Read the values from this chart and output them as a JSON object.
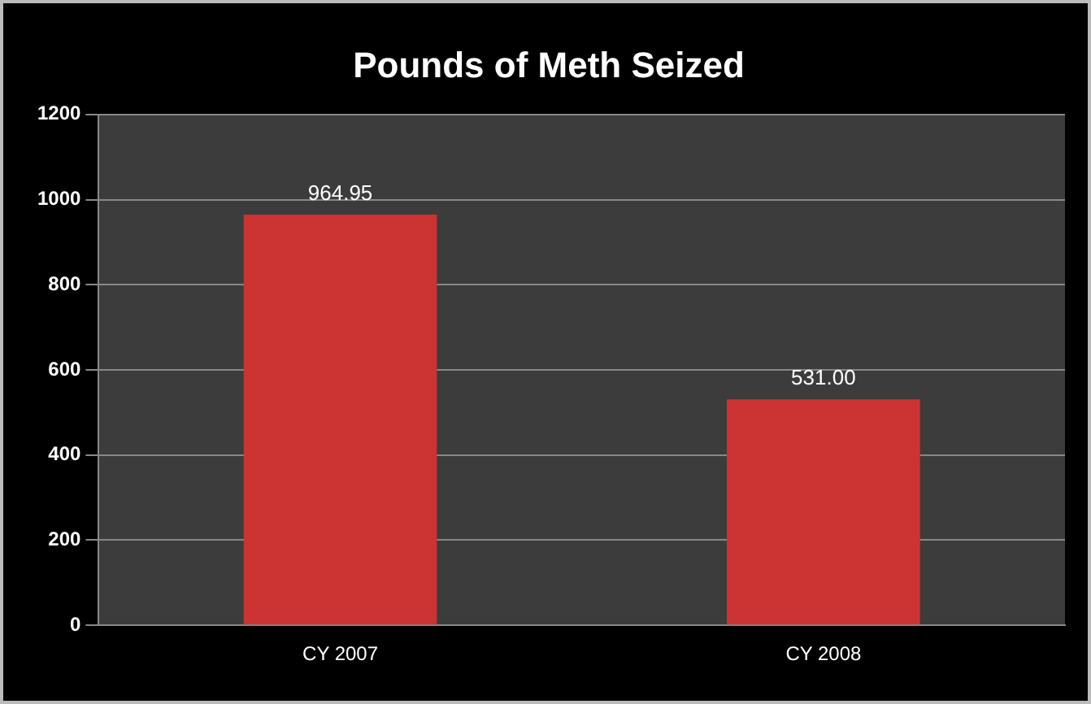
{
  "chart_data": {
    "type": "bar",
    "title": "Pounds of Meth Seized",
    "categories": [
      "CY 2007",
      "CY 2008"
    ],
    "values": [
      964.95,
      531.0
    ],
    "value_labels": [
      "964.95",
      "531.00"
    ],
    "color": "#cc3333",
    "ylim": [
      0,
      1200
    ],
    "yticks": [
      0,
      200,
      400,
      600,
      800,
      1000,
      1200
    ],
    "grid": "y",
    "legend": false
  }
}
